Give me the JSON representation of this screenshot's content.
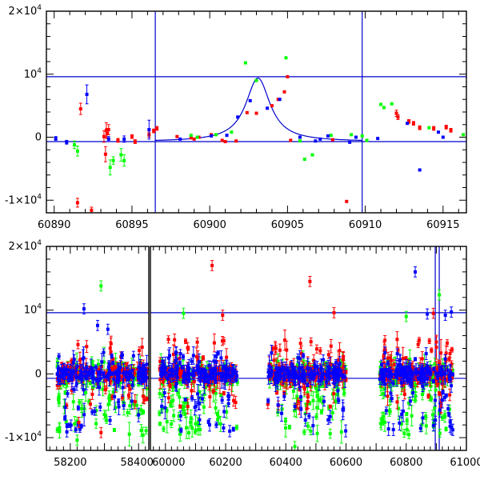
{
  "colors": {
    "red": "#ff0000",
    "green": "#00ff00",
    "blue": "#0000ff",
    "axis": "#000000",
    "guide": "#0000cc"
  },
  "chart_data": [
    {
      "type": "scatter",
      "name": "zoom-panel",
      "title": "",
      "xlabel": "",
      "ylabel": "",
      "xlim": [
        60889.5,
        60916.5
      ],
      "ylim": [
        -12000,
        20000
      ],
      "x_ticks": [
        {
          "value": 60890,
          "label": "60890"
        },
        {
          "value": 60895,
          "label": "60895"
        },
        {
          "value": 60900,
          "label": "60900"
        },
        {
          "value": 60905,
          "label": "60905"
        },
        {
          "value": 60910,
          "label": "60910"
        },
        {
          "value": 60915,
          "label": "60915"
        }
      ],
      "y_ticks": [
        {
          "value": -10000,
          "label": "-1×10",
          "exp": "4"
        },
        {
          "value": 0,
          "label": "0",
          "exp": ""
        },
        {
          "value": 10000,
          "label": "10",
          "exp": "4"
        },
        {
          "value": 20000,
          "label": "2×10",
          "exp": "4"
        }
      ],
      "vlines": [
        60896.5,
        60909.8
      ],
      "hlines": [
        9600,
        -700
      ],
      "model_curve": {
        "baseline": -700,
        "peak": 9400,
        "t0": 60903.1,
        "width": 0.95,
        "x_range": [
          60896.5,
          60909.8
        ]
      },
      "series": [
        {
          "name": "red",
          "color": "#ff0000",
          "points": [
            [
              60891.5,
              -10400,
              700
            ],
            [
              60891.7,
              4500,
              900
            ],
            [
              60892.4,
              -11600,
              500
            ],
            [
              60893.2,
              100,
              900
            ],
            [
              60893.3,
              -2700,
              1200
            ],
            [
              60893.35,
              1100,
              1200
            ],
            [
              60893.4,
              600,
              800
            ],
            [
              60893.5,
              1200,
              800
            ],
            [
              60894.1,
              -500,
              300
            ],
            [
              60895.0,
              100,
              300
            ],
            [
              60895.2,
              -700,
              300
            ],
            [
              60896.1,
              400,
              400
            ],
            [
              60896.4,
              1000,
              300
            ],
            [
              60896.6,
              1400,
              300
            ],
            [
              60897.9,
              100,
              0
            ],
            [
              60898.8,
              -100,
              0
            ],
            [
              60899.0,
              -300,
              0
            ],
            [
              60899.3,
              0,
              0
            ],
            [
              60900.1,
              400,
              0
            ],
            [
              60900.8,
              -500,
              0
            ],
            [
              60901.0,
              -700,
              0
            ],
            [
              60901.7,
              -600,
              0
            ],
            [
              60902.4,
              3900,
              0
            ],
            [
              60903.0,
              3800,
              0
            ],
            [
              60904.0,
              5000,
              0
            ],
            [
              60904.4,
              6000,
              0
            ],
            [
              60904.8,
              7200,
              0
            ],
            [
              60905.0,
              9600,
              0
            ],
            [
              60905.2,
              -500,
              0
            ],
            [
              60907.9,
              -400,
              0
            ],
            [
              60908.8,
              -10200,
              0
            ],
            [
              60912.0,
              3800,
              500
            ],
            [
              60912.1,
              3200,
              400
            ],
            [
              60912.8,
              2500,
              300
            ],
            [
              60913.1,
              2200,
              300
            ],
            [
              60913.5,
              1500,
              300
            ],
            [
              60914.4,
              1400,
              300
            ],
            [
              60915.2,
              1600,
              300
            ],
            [
              60915.5,
              1100,
              300
            ]
          ]
        },
        {
          "name": "green",
          "color": "#00ff00",
          "points": [
            [
              60891.3,
              -1200,
              600
            ],
            [
              60891.5,
              -2200,
              800
            ],
            [
              60893.6,
              -4800,
              1200
            ],
            [
              60893.8,
              -3700,
              600
            ],
            [
              60894.3,
              -2800,
              1000
            ],
            [
              60894.5,
              -3700,
              900
            ],
            [
              60898.8,
              300,
              0
            ],
            [
              60899.2,
              0,
              0
            ],
            [
              60900.4,
              400,
              0
            ],
            [
              60901.4,
              800,
              0
            ],
            [
              60902.3,
              11800,
              0
            ],
            [
              60903.0,
              9000,
              0
            ],
            [
              60904.9,
              12600,
              0
            ],
            [
              60905.8,
              -600,
              0
            ],
            [
              60906.1,
              -3500,
              0
            ],
            [
              60906.6,
              -2800,
              0
            ],
            [
              60907.8,
              300,
              0
            ],
            [
              60909.1,
              400,
              0
            ],
            [
              60909.8,
              200,
              0
            ],
            [
              60910.1,
              -500,
              0
            ],
            [
              60911.0,
              5200,
              0
            ],
            [
              60911.2,
              4700,
              0
            ],
            [
              60911.7,
              5300,
              0
            ],
            [
              60914.1,
              1500,
              0
            ],
            [
              60916.3,
              400,
              0
            ]
          ]
        },
        {
          "name": "blue",
          "color": "#0000ff",
          "points": [
            [
              60890.1,
              -200,
              300
            ],
            [
              60890.8,
              -800,
              300
            ],
            [
              60892.1,
              6800,
              1500
            ],
            [
              60893.5,
              -300,
              400
            ],
            [
              60894.5,
              -300,
              500
            ],
            [
              60896.1,
              1200,
              1500
            ],
            [
              60898.1,
              -300,
              0
            ],
            [
              60900.1,
              200,
              0
            ],
            [
              60901.1,
              300,
              0
            ],
            [
              60901.8,
              3200,
              0
            ],
            [
              60902.6,
              5800,
              0
            ],
            [
              60903.7,
              4600,
              0
            ],
            [
              60904.5,
              6000,
              0
            ],
            [
              60905.8,
              0,
              0
            ],
            [
              60906.8,
              -600,
              0
            ],
            [
              60907.1,
              -300,
              0
            ],
            [
              60907.6,
              200,
              0
            ],
            [
              60909.0,
              -800,
              0
            ],
            [
              60909.4,
              0,
              0
            ],
            [
              60910.8,
              -200,
              0
            ],
            [
              60912.7,
              2200,
              0
            ],
            [
              60913.5,
              -5200,
              0
            ],
            [
              60914.7,
              800,
              0
            ],
            [
              60915.0,
              0,
              0
            ]
          ]
        }
      ]
    },
    {
      "type": "scatter",
      "name": "full-lightcurve-panel",
      "title": "",
      "xlabel": "",
      "ylabel": "",
      "ylim": [
        -12000,
        20000
      ],
      "segments": [
        {
          "xlim": [
            58130,
            58430
          ],
          "ticks": [
            {
              "value": 58200,
              "label": "58200"
            },
            {
              "value": 58400,
              "label": "58400"
            }
          ]
        },
        {
          "xlim": [
            59950,
            61000
          ],
          "ticks": [
            {
              "value": 60000,
              "label": "60000"
            },
            {
              "value": 60200,
              "label": "60200"
            },
            {
              "value": 60400,
              "label": "60400"
            },
            {
              "value": 60600,
              "label": "60600"
            },
            {
              "value": 60800,
              "label": "60800"
            },
            {
              "value": 61000,
              "label": "61000"
            }
          ]
        }
      ],
      "y_ticks": [
        {
          "value": -10000,
          "label": "-1×10",
          "exp": "4"
        },
        {
          "value": 0,
          "label": "0",
          "exp": ""
        },
        {
          "value": 10000,
          "label": "10",
          "exp": "4"
        },
        {
          "value": 20000,
          "label": "2×10",
          "exp": "4"
        }
      ],
      "vlines": [
        60896.5,
        60909.8
      ],
      "hlines": [
        9600,
        -700
      ],
      "seasons": [
        {
          "seg": 0,
          "range": [
            58160,
            58425
          ]
        },
        {
          "seg": 1,
          "range": [
            59980,
            60240
          ]
        },
        {
          "seg": 1,
          "range": [
            60340,
            60600
          ]
        },
        {
          "seg": 1,
          "range": [
            60710,
            60955
          ]
        }
      ],
      "series": [
        {
          "name": "red",
          "color": "#ff0000",
          "highlights": [
            [
              0,
              58225,
              -7600
            ],
            [
              0,
              58290,
              -9200
            ],
            [
              1,
              60155,
              17000
            ],
            [
              1,
              60190,
              9200
            ],
            [
              1,
              60480,
              14500
            ],
            [
              1,
              60560,
              9600
            ],
            [
              1,
              60890,
              9500
            ],
            [
              1,
              60900,
              5000
            ]
          ]
        },
        {
          "name": "green",
          "color": "#00ff00",
          "highlights": [
            [
              0,
              58290,
              13800
            ],
            [
              0,
              58220,
              -10400
            ],
            [
              1,
              60060,
              9500
            ],
            [
              1,
              60430,
              -11400
            ],
            [
              1,
              60800,
              9000
            ],
            [
              1,
              60910,
              12400
            ]
          ]
        },
        {
          "name": "blue",
          "color": "#0000ff",
          "highlights": [
            [
              0,
              58240,
              10200
            ],
            [
              0,
              58280,
              7600
            ],
            [
              0,
              58310,
              7000
            ],
            [
              0,
              58190,
              -9100
            ],
            [
              1,
              60830,
              16000
            ],
            [
              1,
              60950,
              9700
            ],
            [
              1,
              60870,
              9400
            ],
            [
              1,
              60930,
              9200
            ]
          ]
        }
      ]
    }
  ]
}
